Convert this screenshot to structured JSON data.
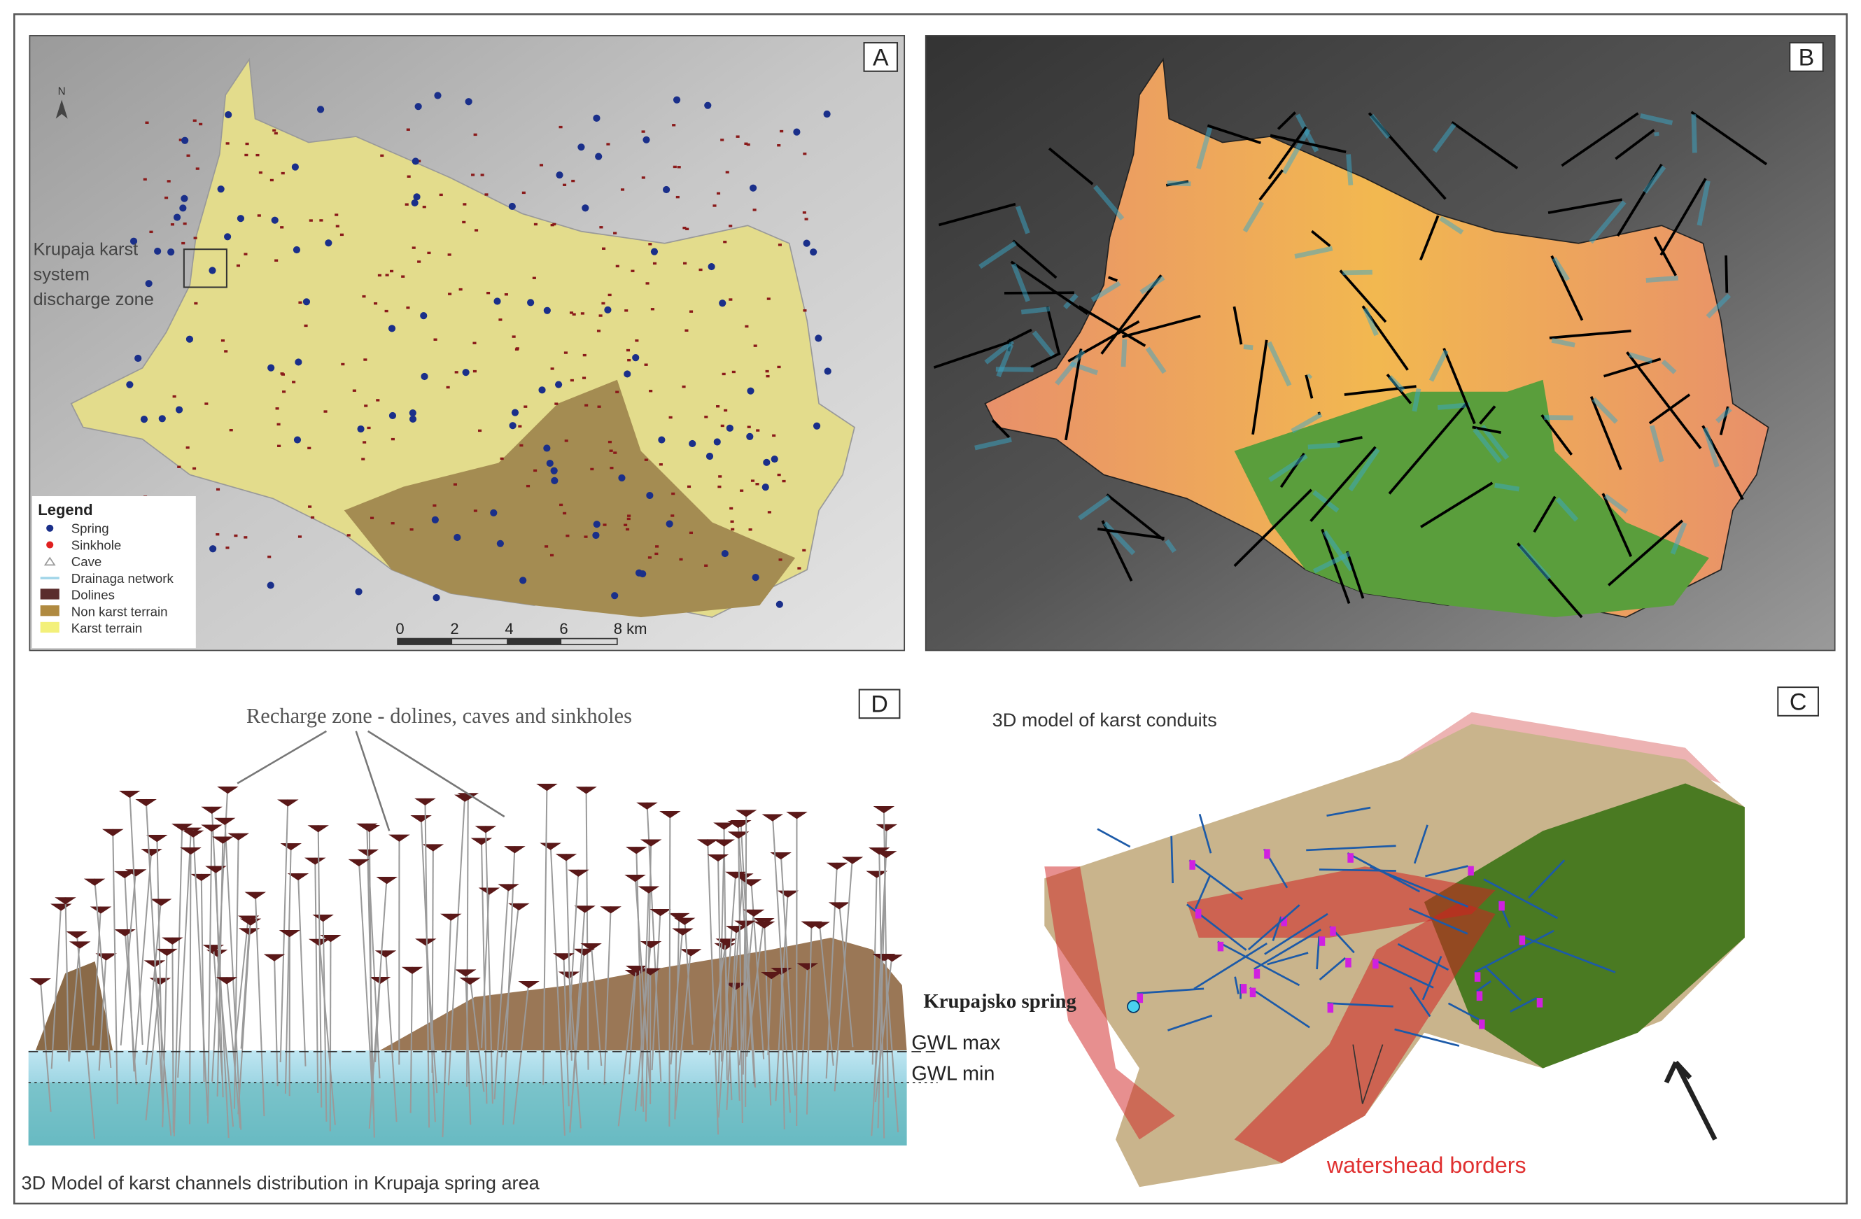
{
  "panels": {
    "a": {
      "label": "A",
      "annotation": [
        "Krupaja karst",
        "system",
        "discharge zone"
      ],
      "north": "N",
      "legend": {
        "title": "Legend",
        "items": [
          "Spring",
          "Sinkhole",
          "Cave",
          "Drainaga network",
          "Dolines",
          "Non karst terrain",
          "Karst terrain"
        ]
      },
      "scale_bar": [
        "0",
        "2",
        "4",
        "6",
        "8 km"
      ]
    },
    "b": {
      "label": "B"
    },
    "d": {
      "label": "D",
      "title": "Recharge zone - dolines, caves and sinkholes",
      "gwl_max": "GWL max",
      "gwl_min": "GWL min",
      "caption": "3D Model of karst channels distribution in Krupaja spring area"
    },
    "c": {
      "label": "C",
      "title": "3D model of karst conduits",
      "spring": "Krupajsko spring",
      "borders": "watershead borders"
    }
  }
}
